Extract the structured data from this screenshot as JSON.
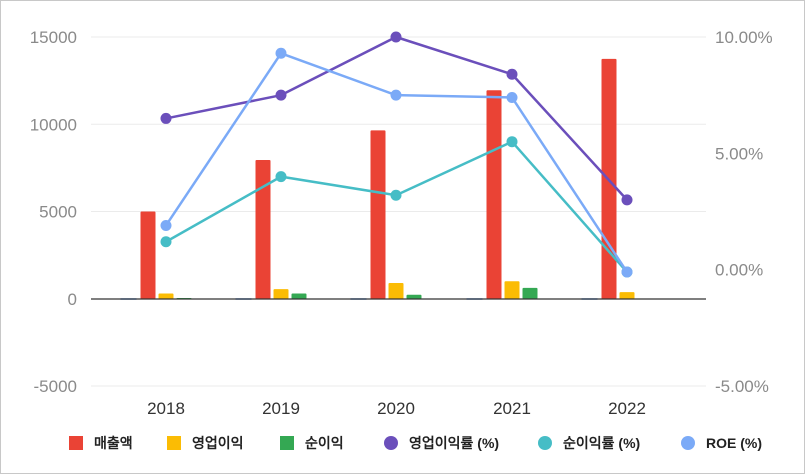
{
  "colors": {
    "revenue": "#EA4335",
    "op_profit": "#FBBC04",
    "net_profit": "#34A853",
    "op_margin": "#6B4FBB",
    "net_margin": "#46BDC6",
    "roe": "#7BAAF7",
    "grid": "#ebebeb",
    "zero_line": "#333333"
  },
  "chart_data": {
    "type": "bar",
    "categories": [
      "2018",
      "2019",
      "2020",
      "2021",
      "2022"
    ],
    "left_axis": {
      "ylim": [
        -5000,
        15000
      ],
      "ticks": [
        "-5000",
        "0",
        "5000",
        "10000",
        "15000"
      ],
      "tick_values": [
        -5000,
        0,
        5000,
        10000,
        15000
      ]
    },
    "right_axis": {
      "ylim": [
        -5,
        10
      ],
      "ticks": [
        "-5.00%",
        "0.00%",
        "5.00%",
        "10.00%"
      ],
      "tick_values": [
        -5,
        0,
        5,
        10
      ]
    },
    "bar_series": [
      {
        "name": "매출액",
        "color_key": "revenue",
        "values": [
          5000,
          7950,
          9650,
          11950,
          13750
        ]
      },
      {
        "name": "영업이익",
        "color_key": "op_profit",
        "values": [
          300,
          550,
          900,
          1000,
          380
        ]
      },
      {
        "name": "순이익",
        "color_key": "net_profit",
        "values": [
          40,
          300,
          230,
          620,
          0
        ]
      }
    ],
    "line_series": [
      {
        "name": "영업이익률 (%)",
        "color_key": "op_margin",
        "values": [
          6.5,
          7.5,
          10.0,
          8.4,
          3.0
        ]
      },
      {
        "name": "순이익률 (%)",
        "color_key": "net_margin",
        "values": [
          1.2,
          4.0,
          3.2,
          5.5,
          -0.1
        ]
      },
      {
        "name": "ROE (%)",
        "color_key": "roe",
        "values": [
          1.9,
          9.3,
          7.5,
          7.4,
          -0.1
        ]
      }
    ],
    "grid": true,
    "legend_position": "bottom"
  }
}
